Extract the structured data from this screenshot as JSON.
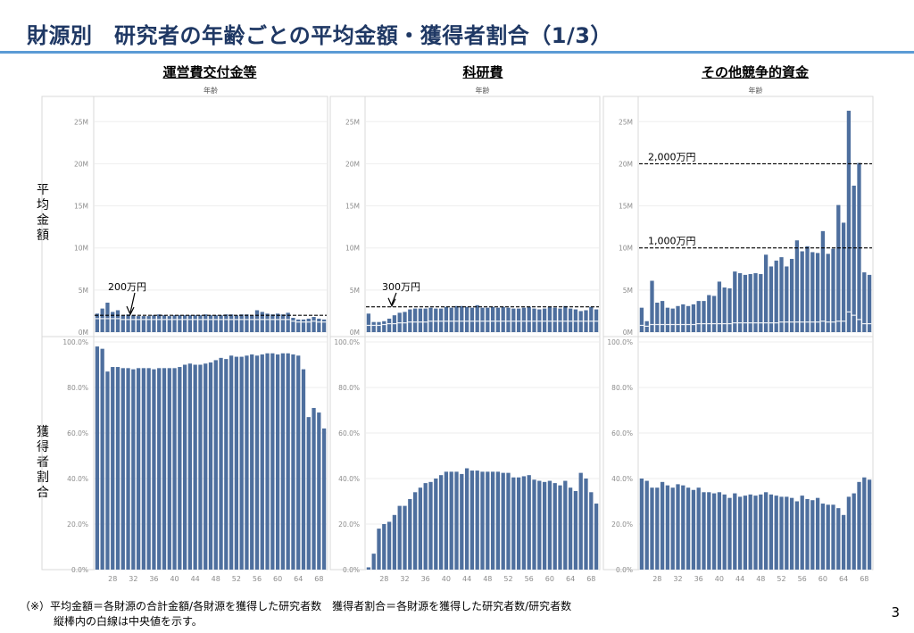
{
  "page": {
    "title": "財源別　研究者の年齢ごとの平均金額・獲得者割合（1/3）",
    "page_number": "3",
    "row_labels": [
      "平均金額",
      "獲得者割合"
    ],
    "footnote": [
      "（※）平均金額＝各財源の合計金額/各財源を獲得した研究者数　獲得者割合＝各財源を獲得した研究者数/研究者数",
      "縦棒内の白線は中央値を示す。"
    ],
    "colors": {
      "bar": "#4e6f9e",
      "title": "#1f3864",
      "rule": "#5b9bd5",
      "median": "#ffffff"
    }
  },
  "chart_data": [
    {
      "type": "bar",
      "title": "運営費交付金等",
      "xlabel": "年齢",
      "ages": [
        25,
        26,
        27,
        28,
        29,
        30,
        31,
        32,
        33,
        34,
        35,
        36,
        37,
        38,
        39,
        40,
        41,
        42,
        43,
        44,
        45,
        46,
        47,
        48,
        49,
        50,
        51,
        52,
        53,
        54,
        55,
        56,
        57,
        58,
        59,
        60,
        61,
        62,
        63,
        64,
        65,
        66,
        67,
        68,
        69
      ],
      "x_ticks": [
        "28",
        "32",
        "36",
        "40",
        "44",
        "48",
        "52",
        "56",
        "60",
        "64",
        "68"
      ],
      "amount": {
        "ylim": [
          0,
          28000000
        ],
        "ticks": [
          "0M",
          "5M",
          "10M",
          "15M",
          "20M",
          "25M"
        ],
        "values": [
          2200000,
          2800000,
          3500000,
          2400000,
          2600000,
          2000000,
          2100000,
          2000000,
          1900000,
          1900000,
          1900000,
          2000000,
          2100000,
          2000000,
          1900000,
          2000000,
          2000000,
          2000000,
          2000000,
          2000000,
          2000000,
          2100000,
          2000000,
          2000000,
          2000000,
          2100000,
          2100000,
          2000000,
          2100000,
          2100000,
          2000000,
          2600000,
          2400000,
          2200000,
          2100000,
          2200000,
          2100000,
          2300000,
          1700000,
          1500000,
          1500000,
          1600000,
          1800000,
          1600000,
          1500000
        ],
        "median": [
          1600000,
          1600000,
          1600000,
          1600000,
          1600000,
          1500000,
          1500000,
          1500000,
          1500000,
          1500000,
          1500000,
          1500000,
          1500000,
          1500000,
          1500000,
          1500000,
          1500000,
          1500000,
          1500000,
          1500000,
          1500000,
          1500000,
          1500000,
          1500000,
          1500000,
          1500000,
          1500000,
          1500000,
          1500000,
          1500000,
          1500000,
          1500000,
          1500000,
          1500000,
          1500000,
          1500000,
          1500000,
          1500000,
          1300000,
          1200000,
          1200000,
          1200000,
          1300000,
          1200000,
          1200000
        ],
        "reference": {
          "value": 2000000,
          "label": "200万円"
        }
      },
      "share": {
        "ylim": [
          0,
          100
        ],
        "ticks": [
          "0.0%",
          "20.0%",
          "40.0%",
          "60.0%",
          "80.0%",
          "100.0%"
        ],
        "values": [
          98,
          97,
          87,
          89,
          89,
          88.5,
          88.5,
          88,
          88.5,
          88.5,
          88.5,
          88,
          88.5,
          88.5,
          88.5,
          88.5,
          89,
          90,
          90.5,
          90,
          90,
          90.5,
          91,
          92,
          93,
          92.5,
          94,
          93.5,
          93.5,
          94,
          94.5,
          94,
          94.5,
          95,
          95,
          94.5,
          95,
          95,
          94.5,
          94,
          88,
          67,
          71,
          69,
          62
        ]
      }
    },
    {
      "type": "bar",
      "title": "科研費",
      "xlabel": "年齢",
      "ages": [
        25,
        26,
        27,
        28,
        29,
        30,
        31,
        32,
        33,
        34,
        35,
        36,
        37,
        38,
        39,
        40,
        41,
        42,
        43,
        44,
        45,
        46,
        47,
        48,
        49,
        50,
        51,
        52,
        53,
        54,
        55,
        56,
        57,
        58,
        59,
        60,
        61,
        62,
        63,
        64,
        65,
        66,
        67,
        68,
        69
      ],
      "x_ticks": [
        "28",
        "32",
        "36",
        "40",
        "44",
        "48",
        "52",
        "56",
        "60",
        "64",
        "68"
      ],
      "amount": {
        "ylim": [
          0,
          28000000
        ],
        "ticks": [
          "0M",
          "5M",
          "10M",
          "15M",
          "20M",
          "25M"
        ],
        "values": [
          2200000,
          1200000,
          1200000,
          1300000,
          1600000,
          2000000,
          2300000,
          2400000,
          2700000,
          2800000,
          2800000,
          2800000,
          2900000,
          2800000,
          2800000,
          3000000,
          2900000,
          3100000,
          3100000,
          3000000,
          2900000,
          3200000,
          2900000,
          2900000,
          3000000,
          2900000,
          3000000,
          2900000,
          2800000,
          2800000,
          2900000,
          3000000,
          2800000,
          2700000,
          2800000,
          3000000,
          2900000,
          2800000,
          3100000,
          2800000,
          2700000,
          2500000,
          2600000,
          3000000,
          2700000
        ],
        "median": [
          800000,
          800000,
          800000,
          900000,
          1000000,
          1000000,
          1100000,
          1100000,
          1200000,
          1200000,
          1200000,
          1200000,
          1300000,
          1300000,
          1300000,
          1300000,
          1300000,
          1300000,
          1300000,
          1300000,
          1300000,
          1300000,
          1300000,
          1300000,
          1300000,
          1300000,
          1300000,
          1300000,
          1300000,
          1300000,
          1300000,
          1300000,
          1300000,
          1300000,
          1300000,
          1300000,
          1300000,
          1300000,
          1300000,
          1300000,
          1300000,
          1300000,
          1300000,
          1300000,
          1300000
        ],
        "reference": {
          "value": 3000000,
          "label": "300万円"
        }
      },
      "share": {
        "ylim": [
          0,
          100
        ],
        "ticks": [
          "0.0%",
          "20.0%",
          "40.0%",
          "60.0%",
          "80.0%",
          "100.0%"
        ],
        "values": [
          1,
          7,
          18,
          20,
          21,
          24,
          28,
          28,
          31,
          34,
          36,
          38,
          38.5,
          40,
          41.5,
          43,
          43,
          43,
          42,
          44.5,
          43.5,
          43.5,
          43,
          43,
          43,
          43,
          42.5,
          42.5,
          40.5,
          40.5,
          41,
          41.5,
          39.5,
          39,
          38.5,
          39,
          38,
          37,
          39,
          36,
          34.5,
          42.5,
          40,
          34,
          29
        ]
      }
    },
    {
      "type": "bar",
      "title": "その他競争的資金",
      "xlabel": "年齢",
      "ages": [
        25,
        26,
        27,
        28,
        29,
        30,
        31,
        32,
        33,
        34,
        35,
        36,
        37,
        38,
        39,
        40,
        41,
        42,
        43,
        44,
        45,
        46,
        47,
        48,
        49,
        50,
        51,
        52,
        53,
        54,
        55,
        56,
        57,
        58,
        59,
        60,
        61,
        62,
        63,
        64,
        65,
        66,
        67,
        68,
        69
      ],
      "x_ticks": [
        "28",
        "32",
        "36",
        "40",
        "44",
        "48",
        "52",
        "56",
        "60",
        "64",
        "68"
      ],
      "amount": {
        "ylim": [
          0,
          28000000
        ],
        "ticks": [
          "0M",
          "5M",
          "10M",
          "15M",
          "20M",
          "25M"
        ],
        "values": [
          2900000,
          1300000,
          6100000,
          3500000,
          3700000,
          2900000,
          2800000,
          3100000,
          3300000,
          3100000,
          3300000,
          3700000,
          3700000,
          4400000,
          4300000,
          6000000,
          5300000,
          5200000,
          7200000,
          7000000,
          6800000,
          6900000,
          7000000,
          6900000,
          9200000,
          7800000,
          8500000,
          8900000,
          7800000,
          8700000,
          10900000,
          9600000,
          10200000,
          9500000,
          9400000,
          12000000,
          9300000,
          9900000,
          15100000,
          13000000,
          26300000,
          17400000,
          20100000,
          7100000,
          6800000
        ],
        "median": [
          800000,
          700000,
          900000,
          900000,
          900000,
          900000,
          900000,
          900000,
          900000,
          900000,
          900000,
          1000000,
          1000000,
          1000000,
          1000000,
          1000000,
          1000000,
          1000000,
          1100000,
          1100000,
          1100000,
          1100000,
          1100000,
          1100000,
          1100000,
          1100000,
          1100000,
          1200000,
          1200000,
          1200000,
          1200000,
          1200000,
          1200000,
          1200000,
          1200000,
          1300000,
          1200000,
          1200000,
          1300000,
          1300000,
          2400000,
          2000000,
          1500000,
          1000000,
          1000000
        ],
        "reference": [
          {
            "value": 20000000,
            "label": "2,000万円"
          },
          {
            "value": 10000000,
            "label": "1,000万円"
          }
        ]
      },
      "share": {
        "ylim": [
          0,
          100
        ],
        "ticks": [
          "0.0%",
          "20.0%",
          "40.0%",
          "60.0%",
          "80.0%",
          "100.0%"
        ],
        "values": [
          40,
          39,
          36,
          36,
          38.5,
          37,
          36,
          37.5,
          37,
          36,
          35,
          36,
          34,
          34,
          33.5,
          34,
          33,
          31.5,
          33.5,
          32,
          32.5,
          33,
          32.5,
          33,
          34,
          33,
          32.5,
          32,
          32,
          31.5,
          30,
          32.5,
          31,
          30.5,
          31.5,
          29,
          28.5,
          28.5,
          27,
          24,
          32,
          33.5,
          38.5,
          40.5,
          39.5
        ]
      }
    }
  ]
}
